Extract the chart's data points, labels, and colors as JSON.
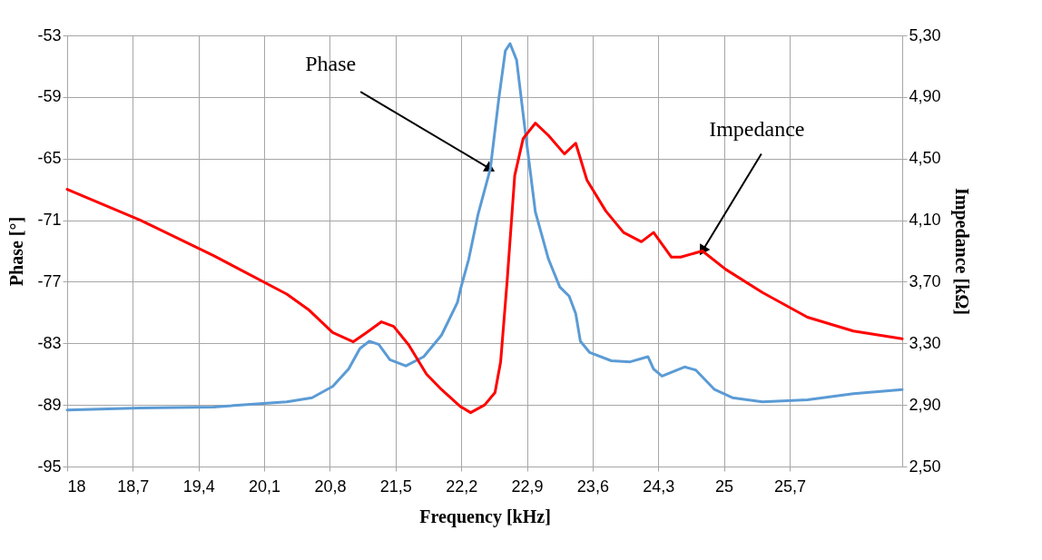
{
  "chart_data": {
    "type": "line",
    "xlabel": "Frequency [kHz]",
    "ylabel": "Phase [°]",
    "y2label": "Impedance [kΩ]",
    "xlim": [
      18,
      26.9
    ],
    "xticks": [
      18,
      {
        "value": 18.7,
        "label": "18,7"
      },
      {
        "value": 19.4,
        "label": "19,4"
      },
      {
        "value": 20.1,
        "label": "20,1"
      },
      {
        "value": 20.8,
        "label": "20,8"
      },
      {
        "value": 21.5,
        "label": "21,5"
      },
      {
        "value": 22.2,
        "label": "22,2"
      },
      {
        "value": 22.9,
        "label": "22,9"
      },
      {
        "value": 23.6,
        "label": "23,6"
      },
      {
        "value": 24.3,
        "label": "24,3"
      },
      25,
      {
        "value": 25.7,
        "label": "25,7"
      }
    ],
    "ylim": [
      -95,
      -53
    ],
    "yticks": [
      -95,
      -89,
      -83,
      -77,
      -71,
      -65,
      -59,
      -53
    ],
    "y2lim": [
      2.5,
      5.3
    ],
    "y2ticks": [
      {
        "value": 2.5,
        "label": "2,50"
      },
      {
        "value": 2.9,
        "label": "2,90"
      },
      {
        "value": 3.3,
        "label": "3,30"
      },
      {
        "value": 3.7,
        "label": "3,70"
      },
      {
        "value": 4.1,
        "label": "4,10"
      },
      {
        "value": 4.5,
        "label": "4,50"
      },
      {
        "value": 4.9,
        "label": "4,90"
      },
      {
        "value": 5.3,
        "label": "5,30"
      }
    ],
    "grid": true,
    "series": [
      {
        "color": "#5b9bd5",
        "x": [
          18.0,
          18.78,
          19.56,
          20.34,
          20.61,
          20.83,
          21.0,
          21.12,
          21.22,
          21.32,
          21.44,
          21.61,
          21.8,
          21.99,
          22.16,
          22.19,
          22.28,
          22.38,
          22.51,
          22.6,
          22.67,
          22.72,
          22.79,
          22.88,
          22.99,
          23.13,
          23.25,
          23.35,
          23.42,
          23.47,
          23.57,
          23.8,
          24.0,
          24.19,
          24.25,
          24.34,
          24.58,
          24.7,
          24.9,
          25.09,
          25.41,
          25.89,
          26.38,
          26.9
        ],
        "values": [
          -89.5,
          -89.3,
          -89.2,
          -88.7,
          -88.3,
          -87.2,
          -85.5,
          -83.5,
          -82.8,
          -83.1,
          -84.6,
          -85.2,
          -84.3,
          -82.2,
          -79.0,
          -77.8,
          -74.8,
          -70.4,
          -66.0,
          -59.2,
          -54.5,
          -53.8,
          -55.4,
          -62.2,
          -70.2,
          -74.8,
          -77.5,
          -78.4,
          -80.1,
          -82.8,
          -83.9,
          -84.7,
          -84.8,
          -84.3,
          -85.5,
          -86.2,
          -85.3,
          -85.6,
          -87.5,
          -88.3,
          -88.7,
          -88.5,
          -87.9,
          -87.5
        ]
      },
      {
        "color": "#ff0000",
        "axis": "y2",
        "x": [
          18.0,
          18.78,
          19.56,
          20.34,
          20.57,
          20.83,
          21.05,
          21.19,
          21.35,
          21.48,
          21.64,
          21.83,
          21.99,
          22.19,
          22.3,
          22.45,
          22.56,
          22.62,
          22.69,
          22.77,
          22.86,
          22.99,
          23.13,
          23.3,
          23.42,
          23.54,
          23.74,
          23.93,
          24.12,
          24.25,
          24.44,
          24.54,
          24.77,
          25.02,
          25.41,
          25.89,
          26.38,
          26.9
        ],
        "values": [
          4.3,
          4.1,
          3.87,
          3.62,
          3.52,
          3.37,
          3.31,
          3.37,
          3.44,
          3.41,
          3.29,
          3.1,
          3.0,
          2.89,
          2.85,
          2.9,
          2.98,
          3.18,
          3.71,
          4.39,
          4.63,
          4.73,
          4.65,
          4.53,
          4.6,
          4.36,
          4.16,
          4.02,
          3.96,
          4.02,
          3.86,
          3.86,
          3.9,
          3.78,
          3.63,
          3.47,
          3.38,
          3.33
        ]
      }
    ],
    "annotations": [
      {
        "text": "Phase",
        "x": 22.51,
        "y": -66.0
      },
      {
        "text": "Impedance",
        "x": 24.77,
        "y": -74.0
      }
    ]
  }
}
